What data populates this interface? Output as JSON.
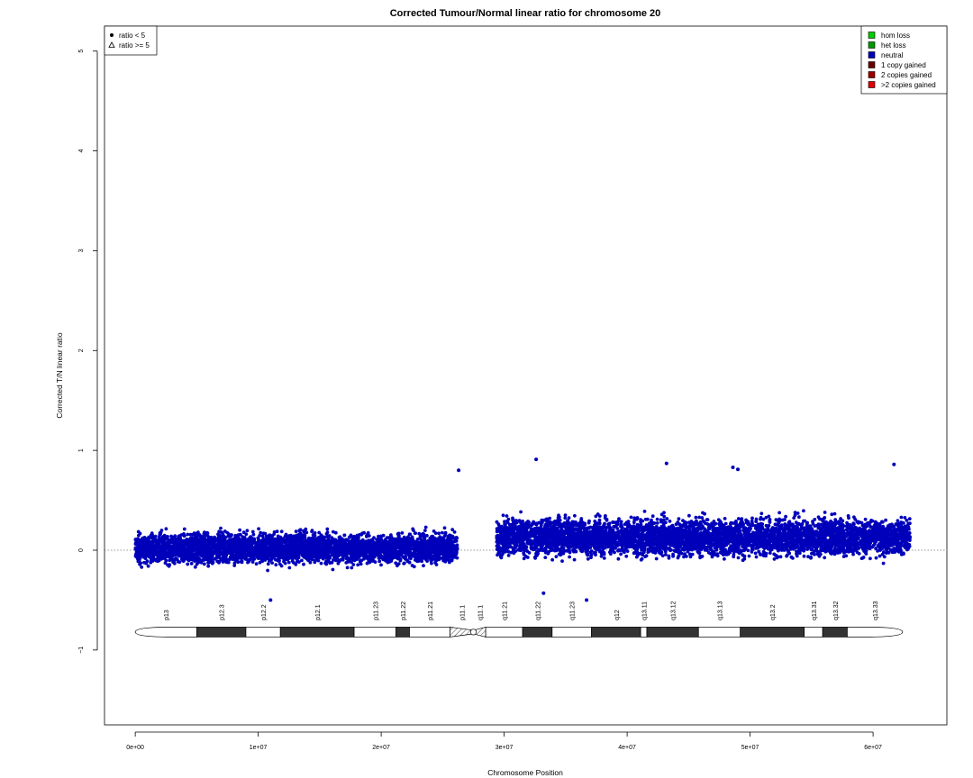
{
  "chart_data": {
    "type": "scatter",
    "title": "Corrected Tumour/Normal linear ratio for chromosome  20",
    "xlabel": "Chromosome Position",
    "ylabel": "Corrected T/N linear ratio",
    "xlim": [
      -2500000,
      66000000
    ],
    "ylim": [
      -1.75,
      5.25
    ],
    "x_ticks": [
      0,
      10000000,
      20000000,
      30000000,
      40000000,
      50000000,
      60000000
    ],
    "x_tick_labels": [
      "0e+00",
      "1e+07",
      "2e+07",
      "3e+07",
      "4e+07",
      "5e+07",
      "6e+07"
    ],
    "y_ticks": [
      -1,
      0,
      1,
      2,
      3,
      4,
      5
    ],
    "y_tick_labels": [
      "−1",
      "0",
      "1",
      "2",
      "3",
      "4",
      "5"
    ],
    "reference_line_y": 0,
    "grid": false,
    "shape_legend": {
      "position": "top-left",
      "entries": [
        {
          "symbol": "filled-circle",
          "label": "ratio < 5"
        },
        {
          "symbol": "open-triangle",
          "label": "ratio >= 5"
        }
      ]
    },
    "state_legend": {
      "position": "top-right",
      "entries": [
        {
          "label": "hom loss",
          "color": "#00cc00"
        },
        {
          "label": "het loss",
          "color": "#009900"
        },
        {
          "label": "neutral",
          "color": "#0000bb"
        },
        {
          "label": "1 copy gained",
          "color": "#660000"
        },
        {
          "label": "2 copies gained",
          "color": "#990000"
        },
        {
          "label": ">2 copies gained",
          "color": "#dd0000"
        }
      ]
    },
    "series": [
      {
        "name": "neutral",
        "color": "#0000bb",
        "segments": [
          {
            "x_start": 0,
            "x_end": 26200000,
            "mean": 0.02,
            "spread": 0.13
          },
          {
            "x_start": 29400000,
            "x_end": 63000000,
            "mean": 0.13,
            "spread": 0.16
          }
        ],
        "outliers": [
          {
            "x": 26300000,
            "y": 0.8
          },
          {
            "x": 32600000,
            "y": 0.91
          },
          {
            "x": 43200000,
            "y": 0.87
          },
          {
            "x": 48600000,
            "y": 0.83
          },
          {
            "x": 49000000,
            "y": 0.81
          },
          {
            "x": 61700000,
            "y": 0.86
          },
          {
            "x": 36700000,
            "y": -0.5
          },
          {
            "x": 11000000,
            "y": -0.5
          },
          {
            "x": 33200000,
            "y": -0.43
          }
        ]
      }
    ],
    "ideogram": {
      "y": -0.82,
      "bands": [
        {
          "name": "p13",
          "start": 0,
          "end": 5000000,
          "stain": "gneg"
        },
        {
          "name": "p12.3",
          "start": 5000000,
          "end": 9000000,
          "stain": "gpos"
        },
        {
          "name": "p12.2",
          "start": 9000000,
          "end": 11800000,
          "stain": "gneg"
        },
        {
          "name": "p12.1",
          "start": 11800000,
          "end": 17800000,
          "stain": "gpos"
        },
        {
          "name": "p11.23",
          "start": 17800000,
          "end": 21200000,
          "stain": "gneg"
        },
        {
          "name": "p11.22",
          "start": 21200000,
          "end": 22300000,
          "stain": "gpos"
        },
        {
          "name": "p11.21",
          "start": 22300000,
          "end": 25600000,
          "stain": "gneg"
        },
        {
          "name": "p11.1",
          "start": 25600000,
          "end": 27500000,
          "stain": "acen"
        },
        {
          "name": "q11.1",
          "start": 27500000,
          "end": 28500000,
          "stain": "acen"
        },
        {
          "name": "q11.21",
          "start": 28500000,
          "end": 31500000,
          "stain": "gneg"
        },
        {
          "name": "q11.22",
          "start": 31500000,
          "end": 33900000,
          "stain": "gpos"
        },
        {
          "name": "q11.23",
          "start": 33900000,
          "end": 37100000,
          "stain": "gneg"
        },
        {
          "name": "q12",
          "start": 37100000,
          "end": 41100000,
          "stain": "gpos"
        },
        {
          "name": "q13.11",
          "start": 41100000,
          "end": 41600000,
          "stain": "gneg"
        },
        {
          "name": "q13.12",
          "start": 41600000,
          "end": 45800000,
          "stain": "gpos"
        },
        {
          "name": "q13.13",
          "start": 45800000,
          "end": 49200000,
          "stain": "gneg"
        },
        {
          "name": "q13.2",
          "start": 49200000,
          "end": 54400000,
          "stain": "gpos"
        },
        {
          "name": "q13.31",
          "start": 54400000,
          "end": 55900000,
          "stain": "gneg"
        },
        {
          "name": "q13.32",
          "start": 55900000,
          "end": 57900000,
          "stain": "gpos"
        },
        {
          "name": "q13.33",
          "start": 57900000,
          "end": 62400000,
          "stain": "gneg"
        }
      ]
    }
  }
}
